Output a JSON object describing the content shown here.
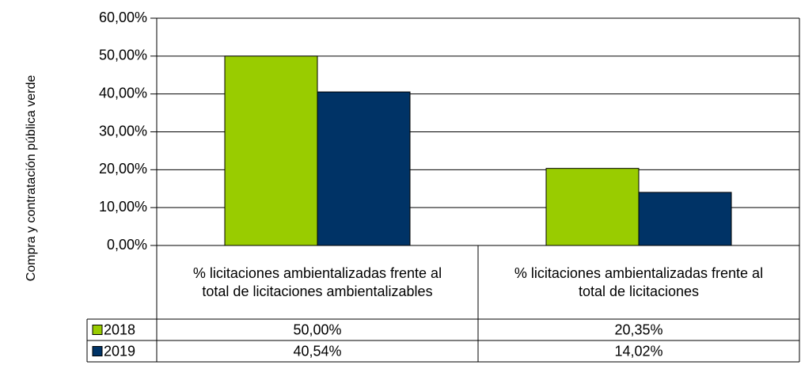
{
  "chart_data": {
    "type": "bar",
    "y_axis_label": "Compra y contratación pública verde",
    "categories": [
      "% licitaciones ambientalizadas frente al total de licitaciones ambientalizables",
      "% licitaciones ambientalizadas frente al total de licitaciones"
    ],
    "series": [
      {
        "name": "2018",
        "color": "#99cc00",
        "values": [
          50,
          20.35
        ],
        "value_labels": [
          "50,00%",
          "20,35%"
        ]
      },
      {
        "name": "2019",
        "color": "#003366",
        "values": [
          40.54,
          14.02
        ],
        "value_labels": [
          "40,54%",
          "14,02%"
        ]
      }
    ],
    "ylim": [
      0,
      60
    ],
    "yticks": [
      {
        "value": 0,
        "label": "0,00%"
      },
      {
        "value": 10,
        "label": "10,00%"
      },
      {
        "value": 20,
        "label": "20,00%"
      },
      {
        "value": 30,
        "label": "30,00%"
      },
      {
        "value": 40,
        "label": "40,00%"
      },
      {
        "value": 50,
        "label": "50,00%"
      },
      {
        "value": 60,
        "label": "60,00%"
      }
    ],
    "grid": true
  }
}
